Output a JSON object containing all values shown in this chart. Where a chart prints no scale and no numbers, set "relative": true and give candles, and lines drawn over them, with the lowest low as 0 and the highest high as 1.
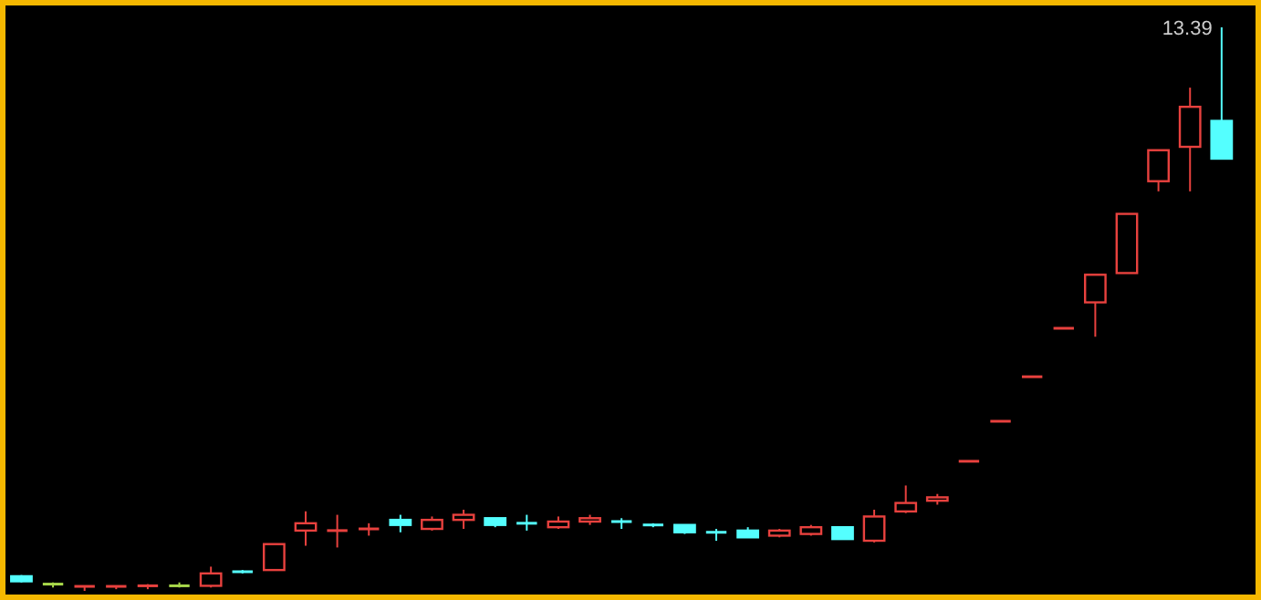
{
  "chart_data": {
    "type": "candlestick",
    "relative": true,
    "categories": [
      null,
      null,
      null,
      null,
      null,
      null,
      null,
      null,
      null,
      null,
      null,
      null,
      null,
      null,
      null,
      null,
      null,
      null,
      null,
      null,
      null,
      null,
      null,
      null,
      null,
      null,
      null,
      null,
      null,
      null,
      null,
      null,
      null,
      null,
      null,
      null,
      null,
      null,
      null
    ],
    "ohlc": [
      [
        0.026,
        0.028,
        0.015,
        0.017
      ],
      [
        0.012,
        0.015,
        0.006,
        0.012
      ],
      [
        0.006,
        0.009,
        0,
        0.008
      ],
      [
        0.006,
        0.009,
        0.003,
        0.008
      ],
      [
        0.006,
        0.012,
        0.003,
        0.009
      ],
      [
        0.009,
        0.015,
        0.006,
        0.009
      ],
      [
        0.009,
        0.043,
        0.006,
        0.031
      ],
      [
        0.034,
        0.037,
        0.031,
        0.034
      ],
      [
        0.037,
        0.083,
        0.037,
        0.083
      ],
      [
        0.107,
        0.141,
        0.08,
        0.12
      ],
      [
        0.107,
        0.135,
        0.077,
        0.107
      ],
      [
        0.11,
        0.12,
        0.098,
        0.11
      ],
      [
        0.126,
        0.135,
        0.104,
        0.117
      ],
      [
        0.11,
        0.132,
        0.107,
        0.126
      ],
      [
        0.126,
        0.144,
        0.11,
        0.135
      ],
      [
        0.129,
        0.129,
        0.113,
        0.117
      ],
      [
        0.12,
        0.135,
        0.107,
        0.12
      ],
      [
        0.113,
        0.132,
        0.11,
        0.123
      ],
      [
        0.123,
        0.135,
        0.117,
        0.129
      ],
      [
        0.123,
        0.129,
        0.11,
        0.123
      ],
      [
        0.117,
        0.12,
        0.113,
        0.117
      ],
      [
        0.117,
        0.117,
        0.101,
        0.104
      ],
      [
        0.104,
        0.11,
        0.089,
        0.104
      ],
      [
        0.107,
        0.113,
        0.095,
        0.095
      ],
      [
        0.098,
        0.11,
        0.095,
        0.107
      ],
      [
        0.101,
        0.117,
        0.098,
        0.113
      ],
      [
        0.113,
        0.113,
        0.092,
        0.092
      ],
      [
        0.089,
        0.144,
        0.086,
        0.132
      ],
      [
        0.141,
        0.187,
        0.138,
        0.156
      ],
      [
        0.16,
        0.172,
        0.153,
        0.166
      ],
      [
        0.23,
        0.23,
        0.23,
        0.23
      ],
      [
        0.301,
        0.301,
        0.301,
        0.301
      ],
      [
        0.38,
        0.38,
        0.38,
        0.38
      ],
      [
        0.466,
        0.466,
        0.466,
        0.466
      ],
      [
        0.512,
        0.561,
        0.451,
        0.561
      ],
      [
        0.564,
        0.669,
        0.564,
        0.669
      ],
      [
        0.727,
        0.782,
        0.709,
        0.782
      ],
      [
        0.788,
        0.893,
        0.709,
        0.859
      ],
      [
        0.834,
        1,
        0.767,
        0.767
      ]
    ],
    "colors": [
      "#54ffff",
      "#a8d84a",
      "#e8413e",
      "#e8413e",
      "#e8413e",
      "#a8d84a",
      "#e8413e",
      "#54ffff",
      "#e8413e",
      "#e8413e",
      "#e8413e",
      "#e8413e",
      "#54ffff",
      "#e8413e",
      "#e8413e",
      "#54ffff",
      "#54ffff",
      "#e8413e",
      "#e8413e",
      "#54ffff",
      "#54ffff",
      "#54ffff",
      "#54ffff",
      "#54ffff",
      "#e8413e",
      "#e8413e",
      "#54ffff",
      "#e8413e",
      "#e8413e",
      "#e8413e",
      "#e8413e",
      "#e8413e",
      "#e8413e",
      "#e8413e",
      "#e8413e",
      "#e8413e",
      "#e8413e",
      "#e8413e",
      "#54ffff"
    ],
    "annotations": [
      "13.39"
    ]
  }
}
